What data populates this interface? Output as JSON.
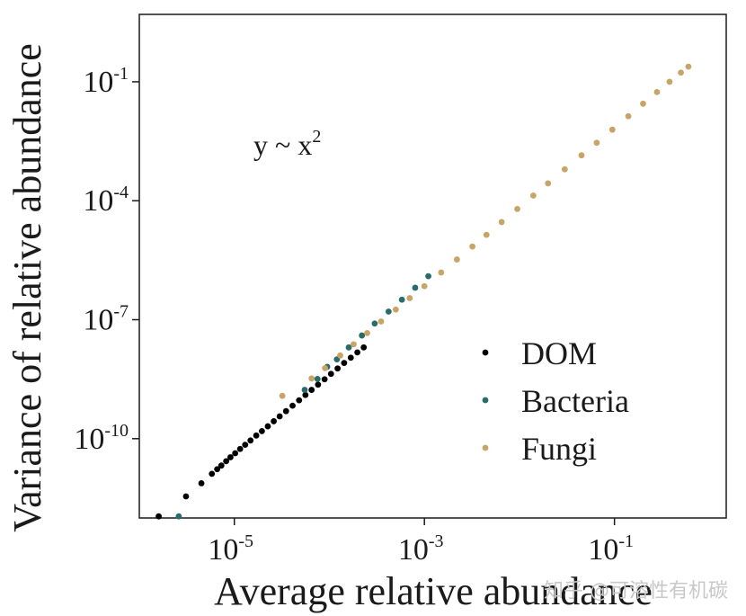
{
  "chart_data": {
    "type": "scatter",
    "x_scale": "log",
    "y_scale": "log",
    "xlim": [
      1e-06,
      1.5
    ],
    "ylim": [
      1e-12,
      5
    ],
    "xlabel": "Average relative abundance",
    "ylabel": "Variance of relative abundance",
    "x_ticks": [
      {
        "base": "10",
        "exp": "-5",
        "value": 1e-05
      },
      {
        "base": "10",
        "exp": "-3",
        "value": 0.001
      },
      {
        "base": "10",
        "exp": "-1",
        "value": 0.1
      }
    ],
    "y_ticks": [
      {
        "base": "10",
        "exp": "-1",
        "value": 0.1
      },
      {
        "base": "10",
        "exp": "-4",
        "value": 0.0001
      },
      {
        "base": "10",
        "exp": "-7",
        "value": 1e-07
      },
      {
        "base": "10",
        "exp": "-10",
        "value": 1e-10
      }
    ],
    "annotation": {
      "text": "y ~ x",
      "sup": "2"
    },
    "legend": {
      "position": "bottom-right",
      "entries": [
        "DOM",
        "Bacteria",
        "Fungi"
      ]
    },
    "series": [
      {
        "name": "DOM",
        "color": "#000000",
        "x": [
          1.6e-06,
          3.1e-06,
          4.5e-06,
          5.8e-06,
          6.6e-06,
          7.3e-06,
          8.2e-06,
          9.1e-06,
          1.02e-05,
          1.15e-05,
          1.3e-05,
          1.48e-05,
          1.7e-05,
          1.95e-05,
          2.25e-05,
          2.6e-05,
          3e-05,
          3.5e-05,
          4.1e-05,
          4.8e-05,
          5.6e-05,
          6.5e-05,
          7.6e-05,
          8.9e-05,
          0.000104,
          0.000122,
          0.000143,
          0.000168,
          0.000197,
          0.00023
        ],
        "y": [
          1.1e-12,
          3.5e-12,
          7.5e-12,
          1.3e-11,
          1.7e-11,
          2.1e-11,
          2.7e-11,
          3.4e-11,
          4.3e-11,
          5.5e-11,
          7e-11,
          9e-11,
          1.2e-10,
          1.55e-10,
          2.05e-10,
          2.75e-10,
          3.65e-10,
          4.95e-10,
          6.8e-10,
          9.3e-10,
          1.26e-09,
          1.7e-09,
          2.3e-09,
          3.15e-09,
          4.3e-09,
          5.9e-09,
          8.1e-09,
          1.1e-08,
          1.5e-08,
          2e-08
        ]
      },
      {
        "name": "Bacteria",
        "color": "#2a6b6b",
        "x": [
          2.6e-06,
          5.5e-05,
          7.5e-05,
          9.5e-05,
          0.00012,
          0.00016,
          0.00022,
          0.0003,
          0.00042,
          0.00058,
          0.0008,
          0.0011
        ],
        "y": [
          1.1e-12,
          1.7e-09,
          3.2e-09,
          6.5e-09,
          1e-08,
          2e-08,
          4e-08,
          8e-08,
          1.6e-07,
          3.2e-07,
          6.4e-07,
          1.25e-06
        ]
      },
      {
        "name": "Fungi",
        "color": "#c8a467",
        "x": [
          3.2e-05,
          6.5e-05,
          9e-05,
          0.00013,
          0.00018,
          0.00025,
          0.00035,
          0.0005,
          0.0007,
          0.001,
          0.0015,
          0.0022,
          0.0032,
          0.0045,
          0.0065,
          0.0095,
          0.014,
          0.02,
          0.03,
          0.045,
          0.065,
          0.095,
          0.14,
          0.2,
          0.28,
          0.38,
          0.5,
          0.6
        ],
        "y": [
          1.2e-09,
          3.3e-09,
          6e-09,
          1.25e-08,
          2.4e-08,
          4.6e-08,
          9e-08,
          1.8e-07,
          3.5e-07,
          7e-07,
          1.55e-06,
          3.3e-06,
          7e-06,
          1.38e-05,
          2.9e-05,
          6.2e-05,
          0.000135,
          0.000275,
          0.00062,
          0.0014,
          0.0029,
          0.0062,
          0.0135,
          0.028,
          0.055,
          0.1,
          0.17,
          0.24
        ]
      }
    ]
  },
  "watermark": "知乎 @可溶性有机碳"
}
